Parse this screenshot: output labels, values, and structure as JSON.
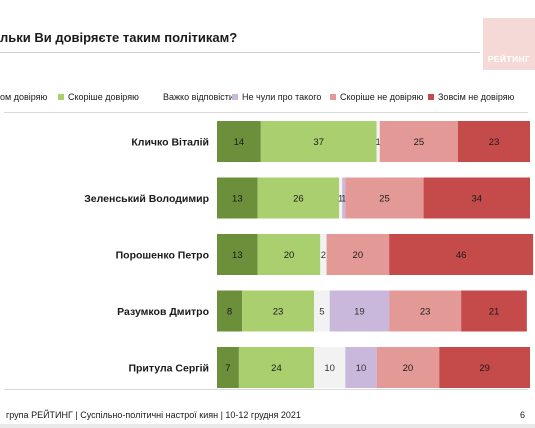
{
  "title": "льки Ви довіряєте таким політикам?",
  "logo_text": "РЕЙТИНГ",
  "footer": "група РЕЙТИНГ | Суспільно-політичні настрої киян | 10-12 грудня 2021",
  "page_number": "6",
  "chart_data": {
    "type": "bar",
    "orientation": "horizontal",
    "stacked": true,
    "categories": [
      "Кличко Віталій",
      "Зеленський Володимир",
      "Порошенко Петро",
      "Разумков Дмитро",
      "Притула Сергій"
    ],
    "series": [
      {
        "name": "ом довіряю",
        "color": "#6b8f3a",
        "values": [
          14,
          13,
          13,
          8,
          7
        ]
      },
      {
        "name": "Скоріше довіряю",
        "color": "#a9cf6e",
        "values": [
          37,
          26,
          20,
          23,
          24
        ]
      },
      {
        "name": "Важко відповісти",
        "color": "#f2f2f2",
        "values": [
          1,
          1,
          2,
          5,
          10
        ]
      },
      {
        "name": "Не чули про такого",
        "color": "#c9b8db",
        "values": [
          0,
          1,
          0,
          19,
          10
        ]
      },
      {
        "name": "Скоріше не довіряю",
        "color": "#e39a96",
        "values": [
          25,
          25,
          20,
          23,
          20
        ]
      },
      {
        "name": "Зовсім не довіряю",
        "color": "#c54b4b",
        "values": [
          23,
          34,
          46,
          21,
          29
        ]
      }
    ],
    "value_labels": [
      [
        "14",
        "37",
        "1",
        "",
        "25",
        "23"
      ],
      [
        "13",
        "26",
        "1",
        "1",
        "25",
        "34"
      ],
      [
        "13",
        "20",
        "2",
        "",
        "20",
        "46"
      ],
      [
        "8",
        "23",
        "5",
        "19",
        "23",
        "21"
      ],
      [
        "7",
        "24",
        "10",
        "10",
        "20",
        "29"
      ]
    ],
    "xlim": [
      0,
      100
    ]
  }
}
